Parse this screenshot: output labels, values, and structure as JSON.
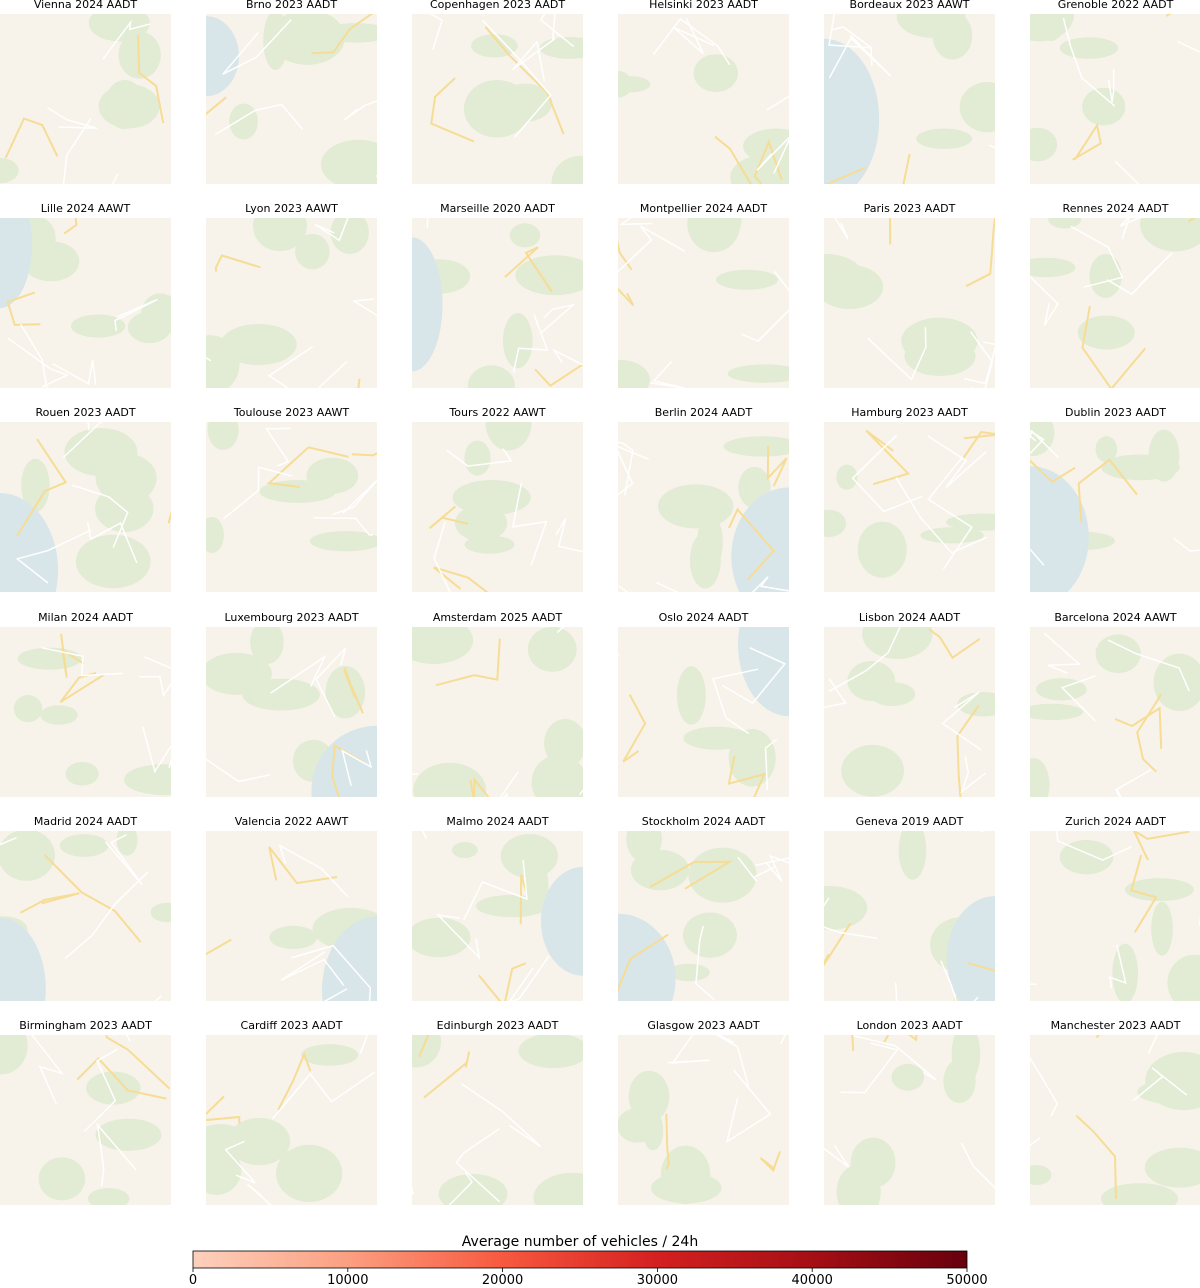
{
  "panels": [
    {
      "title": "Vienna 2024 AADT"
    },
    {
      "title": "Brno 2023 AADT"
    },
    {
      "title": "Copenhagen 2023 AADT"
    },
    {
      "title": "Helsinki 2023 AADT"
    },
    {
      "title": "Bordeaux 2023 AAWT"
    },
    {
      "title": "Grenoble 2022 AADT"
    },
    {
      "title": "Lille 2024 AAWT"
    },
    {
      "title": "Lyon 2023 AAWT"
    },
    {
      "title": "Marseille 2020 AADT"
    },
    {
      "title": "Montpellier 2024 AADT"
    },
    {
      "title": "Paris 2023 AADT"
    },
    {
      "title": "Rennes 2024 AADT"
    },
    {
      "title": "Rouen 2023 AADT"
    },
    {
      "title": "Toulouse 2023 AAWT"
    },
    {
      "title": "Tours 2022 AAWT"
    },
    {
      "title": "Berlin 2024 AADT"
    },
    {
      "title": "Hamburg 2023 AADT"
    },
    {
      "title": "Dublin 2023 AADT"
    },
    {
      "title": "Milan 2024 AADT"
    },
    {
      "title": "Luxembourg 2023 AADT"
    },
    {
      "title": "Amsterdam 2025 AADT"
    },
    {
      "title": "Oslo 2024 AADT"
    },
    {
      "title": "Lisbon 2024 AADT"
    },
    {
      "title": "Barcelona 2024 AAWT"
    },
    {
      "title": "Madrid 2024 AADT"
    },
    {
      "title": "Valencia 2022 AAWT"
    },
    {
      "title": "Malmo 2024 AADT"
    },
    {
      "title": "Stockholm 2024 AADT"
    },
    {
      "title": "Geneva 2019 AADT"
    },
    {
      "title": "Zurich 2024 AADT"
    },
    {
      "title": "Birmingham 2023 AADT"
    },
    {
      "title": "Cardiff 2023 AADT"
    },
    {
      "title": "Edinburgh 2023 AADT"
    },
    {
      "title": "Glasgow 2023 AADT"
    },
    {
      "title": "London 2023 AADT"
    },
    {
      "title": "Manchester 2023 AADT"
    }
  ],
  "colorbar": {
    "label": "Average number of vehicles / 24h",
    "lim": [
      0,
      50000
    ],
    "ticks": [
      0,
      10000,
      20000,
      30000,
      40000,
      50000
    ],
    "colors": [
      "#fdd0bc",
      "#fc9f81",
      "#f7593f",
      "#d42020",
      "#a50f15",
      "#67000d"
    ]
  }
}
